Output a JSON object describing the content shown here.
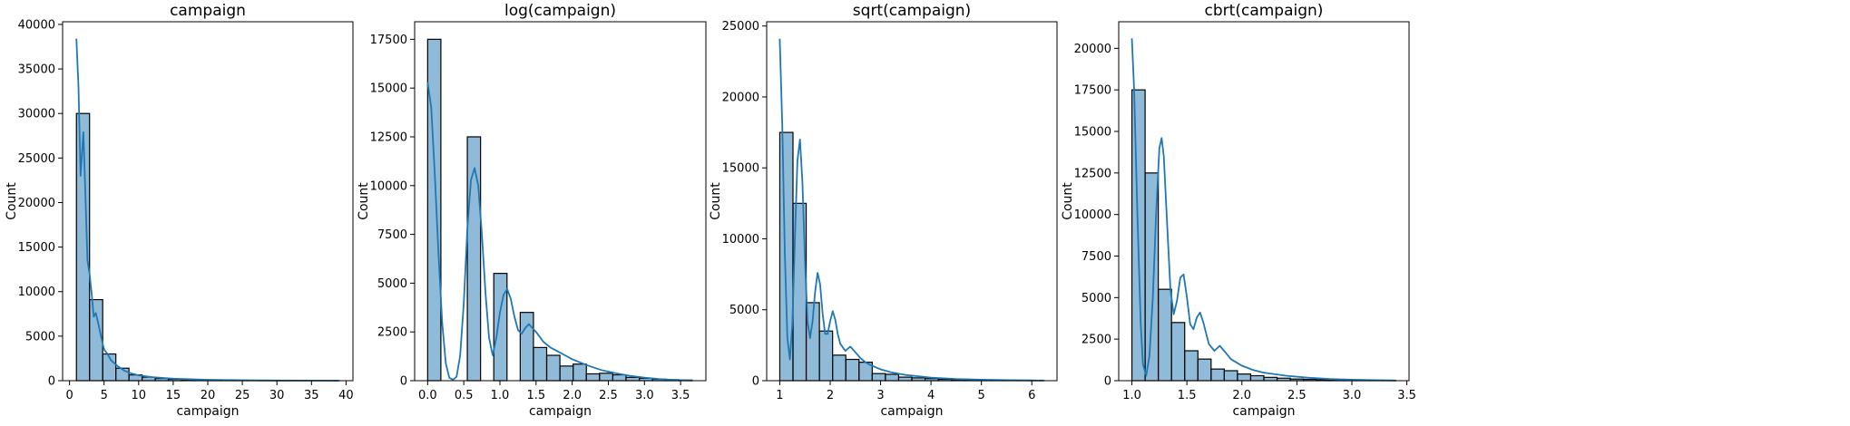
{
  "figure": {
    "hist_fill": "#1f77b4",
    "hist_fill_opacity": 0.5,
    "hist_edge": "#000000",
    "kde_color": "#1f77b4"
  },
  "chart_data": [
    {
      "type": "histogram",
      "title": "campaign",
      "xlabel": "campaign",
      "ylabel": "Count",
      "xlim": [
        -1,
        41
      ],
      "ylim": [
        0,
        40300
      ],
      "xticks": [
        0,
        5,
        10,
        15,
        20,
        25,
        30,
        35,
        40
      ],
      "xtick_labels": [
        "0",
        "5",
        "10",
        "15",
        "20",
        "25",
        "30",
        "35",
        "40"
      ],
      "yticks": [
        0,
        5000,
        10000,
        15000,
        20000,
        25000,
        30000,
        35000,
        40000
      ],
      "ytick_labels": [
        "0",
        "5000",
        "10000",
        "15000",
        "20000",
        "25000",
        "30000",
        "35000",
        "40000"
      ],
      "bin_edges": [
        1,
        2.9,
        4.8,
        6.7,
        8.6,
        10.5,
        12.4,
        14.3,
        16.2,
        18.1,
        20,
        21.9,
        23.8,
        25.7,
        27.6,
        29.5,
        31.4,
        33.3,
        35.2,
        37.1,
        39
      ],
      "counts": [
        30000,
        9100,
        3000,
        1400,
        650,
        400,
        250,
        160,
        110,
        70,
        50,
        35,
        25,
        20,
        15,
        10,
        8,
        6,
        5,
        3
      ],
      "kde": {
        "x": [
          1,
          1.3,
          1.6,
          2,
          2.3,
          2.6,
          2.9,
          3.2,
          3.5,
          3.8,
          4.2,
          4.6,
          5,
          5.5,
          6,
          7,
          8,
          9,
          10,
          12,
          15,
          20,
          25,
          30,
          35,
          39
        ],
        "y": [
          38400,
          33000,
          23000,
          27900,
          21000,
          13500,
          12000,
          9800,
          7200,
          7600,
          6300,
          4800,
          3500,
          3000,
          2300,
          1600,
          1100,
          800,
          600,
          400,
          220,
          100,
          50,
          25,
          12,
          5
        ]
      }
    },
    {
      "type": "histogram",
      "title": "log(campaign)",
      "xlabel": "campaign",
      "ylabel": "Count",
      "xlim": [
        -0.18,
        3.85
      ],
      "ylim": [
        0,
        18400
      ],
      "xticks": [
        0,
        0.5,
        1,
        1.5,
        2,
        2.5,
        3,
        3.5
      ],
      "xtick_labels": [
        "0.0",
        "0.5",
        "1.0",
        "1.5",
        "2.0",
        "2.5",
        "3.0",
        "3.5"
      ],
      "yticks": [
        0,
        2500,
        5000,
        7500,
        10000,
        12500,
        15000,
        17500
      ],
      "ytick_labels": [
        "0",
        "2500",
        "5000",
        "7500",
        "10000",
        "12500",
        "15000",
        "17500"
      ],
      "bin_edges": [
        0,
        0.183,
        0.366,
        0.549,
        0.732,
        0.915,
        1.098,
        1.281,
        1.464,
        1.647,
        1.83,
        2.013,
        2.196,
        2.379,
        2.562,
        2.745,
        2.928,
        3.111,
        3.294,
        3.477,
        3.66
      ],
      "counts": [
        17500,
        0,
        0,
        12500,
        0,
        5500,
        0,
        3500,
        1700,
        1300,
        750,
        850,
        350,
        380,
        300,
        170,
        120,
        80,
        50,
        30
      ],
      "kde": {
        "x": [
          0,
          0.05,
          0.1,
          0.15,
          0.2,
          0.25,
          0.3,
          0.35,
          0.4,
          0.45,
          0.5,
          0.55,
          0.6,
          0.65,
          0.7,
          0.75,
          0.8,
          0.85,
          0.9,
          0.95,
          1.0,
          1.05,
          1.1,
          1.15,
          1.2,
          1.25,
          1.3,
          1.35,
          1.4,
          1.5,
          1.6,
          1.7,
          1.8,
          1.9,
          2.0,
          2.2,
          2.4,
          2.6,
          2.8,
          3.0,
          3.2,
          3.4,
          3.66
        ],
        "y": [
          15300,
          14000,
          10500,
          6500,
          3000,
          900,
          150,
          50,
          200,
          1300,
          4000,
          7800,
          10300,
          10900,
          10000,
          7500,
          4500,
          2200,
          1300,
          2200,
          3500,
          4400,
          4700,
          4200,
          3300,
          2600,
          2400,
          2700,
          2900,
          2500,
          2000,
          1700,
          1500,
          1300,
          1100,
          800,
          550,
          380,
          250,
          160,
          90,
          40,
          10
        ]
      }
    },
    {
      "type": "histogram",
      "title": "sqrt(campaign)",
      "xlabel": "campaign",
      "ylabel": "Count",
      "xlim": [
        0.74,
        6.5
      ],
      "ylim": [
        0,
        25300
      ],
      "xticks": [
        1,
        2,
        3,
        4,
        5,
        6
      ],
      "xtick_labels": [
        "1",
        "2",
        "3",
        "4",
        "5",
        "6"
      ],
      "yticks": [
        0,
        5000,
        10000,
        15000,
        20000,
        25000
      ],
      "ytick_labels": [
        "0",
        "5000",
        "10000",
        "15000",
        "20000",
        "25000"
      ],
      "bin_edges": [
        1,
        1.262,
        1.524,
        1.786,
        2.048,
        2.31,
        2.572,
        2.834,
        3.096,
        3.358,
        3.62,
        3.882,
        4.144,
        4.406,
        4.668,
        4.93,
        5.192,
        5.454,
        5.716,
        5.978,
        6.24
      ],
      "counts": [
        17500,
        12500,
        5500,
        3500,
        1800,
        1500,
        1300,
        500,
        450,
        250,
        200,
        150,
        100,
        80,
        50,
        40,
        30,
        20,
        15,
        10
      ],
      "kde": {
        "x": [
          1,
          1.05,
          1.1,
          1.15,
          1.2,
          1.25,
          1.3,
          1.35,
          1.4,
          1.45,
          1.5,
          1.55,
          1.6,
          1.65,
          1.7,
          1.75,
          1.8,
          1.85,
          1.9,
          1.95,
          2.0,
          2.05,
          2.1,
          2.15,
          2.2,
          2.3,
          2.4,
          2.5,
          2.6,
          2.7,
          2.8,
          3.0,
          3.2,
          3.5,
          4.0,
          4.5,
          5.0,
          5.5,
          6.0,
          6.24
        ],
        "y": [
          24100,
          18000,
          9000,
          3000,
          1500,
          4000,
          10000,
          15500,
          17000,
          14000,
          8500,
          4200,
          3000,
          4200,
          6200,
          7600,
          6800,
          4700,
          3300,
          3300,
          4200,
          4900,
          4300,
          3300,
          2600,
          2100,
          2400,
          2000,
          1600,
          1300,
          1100,
          800,
          600,
          400,
          220,
          120,
          70,
          40,
          20,
          10
        ]
      }
    },
    {
      "type": "histogram",
      "title": "cbrt(campaign)",
      "xlabel": "campaign",
      "ylabel": "Count",
      "xlim": [
        0.88,
        3.52
      ],
      "ylim": [
        0,
        21600
      ],
      "xticks": [
        1,
        1.5,
        2,
        2.5,
        3,
        3.5
      ],
      "xtick_labels": [
        "1.0",
        "1.5",
        "2.0",
        "2.5",
        "3.0",
        "3.5"
      ],
      "yticks": [
        0,
        2500,
        5000,
        7500,
        10000,
        12500,
        15000,
        17500,
        20000
      ],
      "ytick_labels": [
        "0",
        "2500",
        "5000",
        "7500",
        "10000",
        "12500",
        "15000",
        "17500",
        "20000"
      ],
      "bin_edges": [
        1,
        1.12,
        1.24,
        1.36,
        1.48,
        1.6,
        1.72,
        1.84,
        1.96,
        2.08,
        2.2,
        2.32,
        2.44,
        2.56,
        2.68,
        2.8,
        2.92,
        3.04,
        3.16,
        3.28,
        3.4
      ],
      "counts": [
        17500,
        12500,
        5500,
        3500,
        1800,
        1300,
        700,
        600,
        400,
        300,
        200,
        150,
        100,
        80,
        50,
        40,
        30,
        20,
        15,
        10
      ],
      "kde": {
        "x": [
          1,
          1.02,
          1.05,
          1.08,
          1.1,
          1.13,
          1.16,
          1.19,
          1.22,
          1.25,
          1.27,
          1.29,
          1.32,
          1.35,
          1.38,
          1.41,
          1.44,
          1.47,
          1.5,
          1.53,
          1.56,
          1.59,
          1.62,
          1.65,
          1.7,
          1.75,
          1.8,
          1.85,
          1.9,
          2.0,
          2.1,
          2.2,
          2.4,
          2.6,
          2.8,
          3.0,
          3.2,
          3.4
        ],
        "y": [
          20600,
          17500,
          10000,
          3500,
          1000,
          300,
          1500,
          5000,
          10000,
          14000,
          14600,
          13500,
          9500,
          5500,
          4000,
          4800,
          6200,
          6400,
          5000,
          3400,
          3100,
          3800,
          4100,
          3500,
          2200,
          1800,
          2100,
          1700,
          1300,
          900,
          650,
          480,
          300,
          180,
          100,
          60,
          30,
          10
        ]
      }
    }
  ]
}
